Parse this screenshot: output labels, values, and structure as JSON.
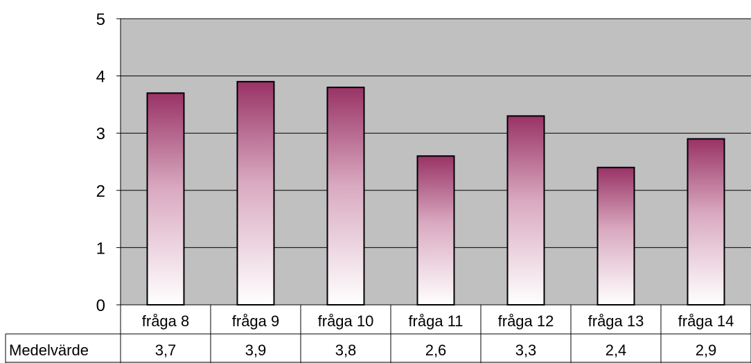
{
  "chart_data": {
    "type": "bar",
    "categories": [
      "fråga 8",
      "fråga 9",
      "fråga 10",
      "fråga 11",
      "fråga 12",
      "fråga 13",
      "fråga 14"
    ],
    "series": [
      {
        "name": "Medelvärde",
        "values": [
          3.7,
          3.9,
          3.8,
          2.6,
          3.3,
          2.4,
          2.9
        ],
        "labels": [
          "3,7",
          "3,9",
          "3,8",
          "2,6",
          "3,3",
          "2,4",
          "2,9"
        ]
      }
    ],
    "ylim": [
      0,
      5
    ],
    "yticks": [
      "0",
      "1",
      "2",
      "3",
      "4",
      "5"
    ],
    "grid": true,
    "data_table": true,
    "colors": {
      "plot_bg": "#c0c0c0",
      "bar_top": "#993366",
      "bar_bottom": "#ffffff",
      "grid": "#000000"
    }
  }
}
